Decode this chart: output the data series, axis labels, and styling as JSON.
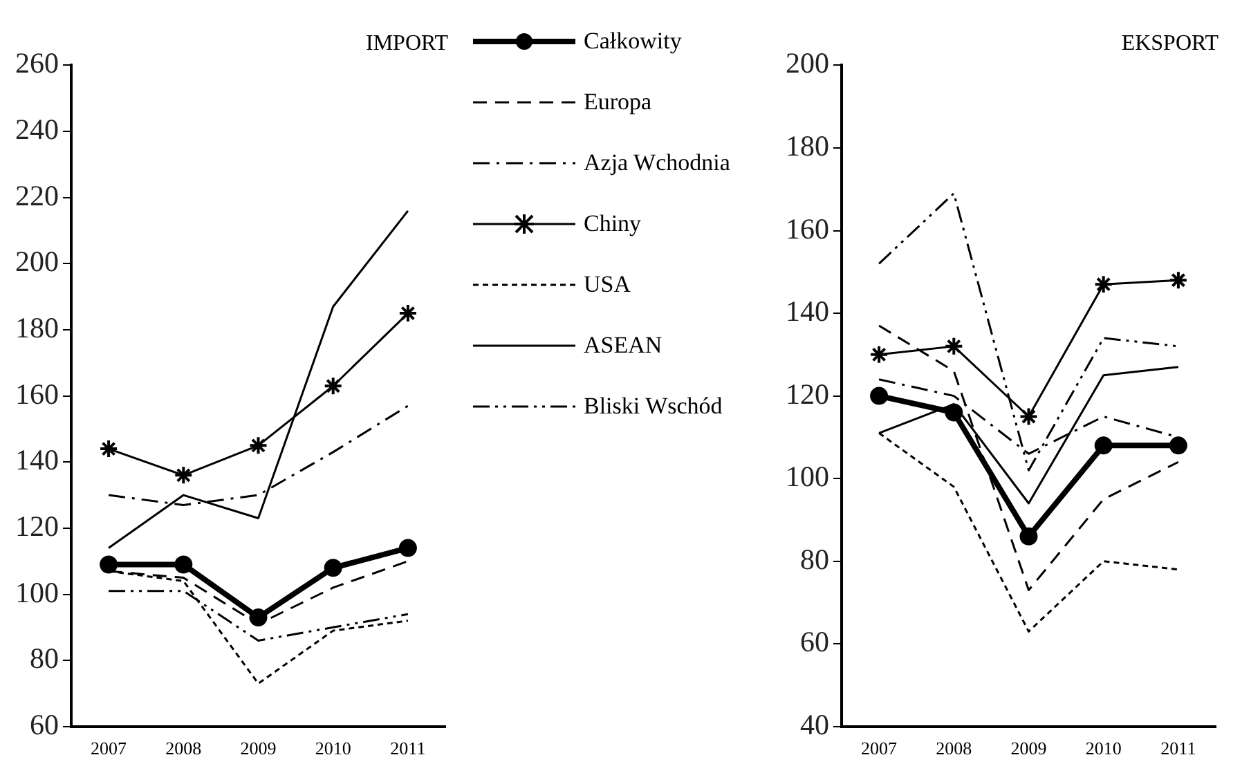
{
  "chart_data": [
    {
      "type": "line",
      "title": "IMPORT",
      "categories": [
        "2007",
        "2008",
        "2009",
        "2010",
        "2011"
      ],
      "ylim": [
        60,
        260
      ],
      "yticks": [
        60,
        80,
        100,
        120,
        140,
        160,
        180,
        200,
        220,
        240,
        260
      ],
      "grid": false,
      "legend": "right",
      "series": [
        {
          "name": "Całkowity",
          "color": "#000000",
          "line_style": "solid",
          "marker": "circle",
          "values": [
            109,
            109,
            93,
            108,
            114
          ]
        },
        {
          "name": "Europa",
          "color": "#000000",
          "line_style": "dashed",
          "marker": "none",
          "values": [
            107,
            105,
            91,
            102,
            110
          ]
        },
        {
          "name": "Azja Wchodnia",
          "color": "#000000",
          "line_style": "dashdot",
          "marker": "none",
          "values": [
            130,
            127,
            130,
            143,
            157
          ]
        },
        {
          "name": "Chiny",
          "color": "#000000",
          "line_style": "solid",
          "marker": "cross",
          "values": [
            144,
            136,
            145,
            163,
            185
          ]
        },
        {
          "name": "USA",
          "color": "#000000",
          "line_style": "dotted",
          "marker": "none",
          "values": [
            107,
            104,
            73,
            89,
            92
          ]
        },
        {
          "name": "ASEAN",
          "color": "#000000",
          "line_style": "solid",
          "marker": "none",
          "values": [
            114,
            130,
            123,
            187,
            216
          ]
        },
        {
          "name": "Bliski Wschód",
          "color": "#000000",
          "line_style": "dashdotdot",
          "marker": "none",
          "values": [
            101,
            101,
            86,
            90,
            94
          ]
        }
      ]
    },
    {
      "type": "line",
      "title": "EKSPORT",
      "categories": [
        "2007",
        "2008",
        "2009",
        "2010",
        "2011"
      ],
      "ylim": [
        40,
        200
      ],
      "yticks": [
        40,
        60,
        80,
        100,
        120,
        140,
        160,
        180,
        200
      ],
      "grid": false,
      "series": [
        {
          "color": "#000000",
          "line_style": "solid",
          "marker": "circle",
          "values": [
            120,
            116,
            86,
            108,
            108
          ]
        },
        {
          "color": "#000000",
          "line_style": "dashed",
          "marker": "none",
          "values": [
            137,
            126,
            73,
            95,
            104
          ]
        },
        {
          "color": "#000000",
          "line_style": "dashdot",
          "marker": "none",
          "values": [
            124,
            120,
            106,
            115,
            110
          ]
        },
        {
          "color": "#000000",
          "line_style": "solid",
          "marker": "cross",
          "values": [
            130,
            132,
            115,
            147,
            148
          ]
        },
        {
          "color": "#000000",
          "line_style": "dotted",
          "marker": "none",
          "values": [
            111,
            98,
            63,
            80,
            78
          ]
        },
        {
          "color": "#000000",
          "line_style": "solid",
          "marker": "none",
          "values": [
            111,
            118,
            94,
            125,
            127
          ]
        },
        {
          "color": "#000000",
          "line_style": "dashdotdot",
          "marker": "none",
          "values": [
            152,
            169,
            102,
            134,
            132
          ]
        }
      ]
    }
  ]
}
